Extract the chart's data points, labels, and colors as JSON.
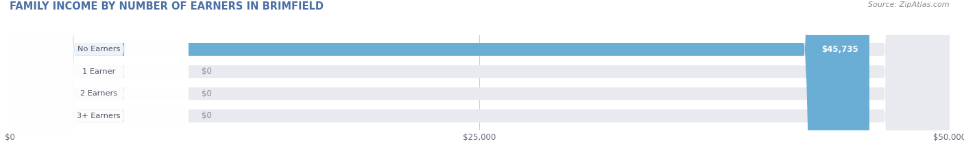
{
  "title": "FAMILY INCOME BY NUMBER OF EARNERS IN BRIMFIELD",
  "source": "Source: ZipAtlas.com",
  "categories": [
    "No Earners",
    "1 Earner",
    "2 Earners",
    "3+ Earners"
  ],
  "values": [
    45735,
    0,
    0,
    0
  ],
  "bar_colors": [
    "#6aaed6",
    "#c9a0c8",
    "#5ec8c0",
    "#b0b8e0"
  ],
  "bar_bg_color": "#e8eaf0",
  "value_labels": [
    "$45,735",
    "$0",
    "$0",
    "$0"
  ],
  "xlim": [
    0,
    50000
  ],
  "xticks": [
    0,
    25000,
    50000
  ],
  "xtick_labels": [
    "$0",
    "$25,000",
    "$50,000"
  ],
  "background_color": "#ffffff",
  "title_color": "#4a6fa5",
  "title_fontsize": 10.5,
  "source_fontsize": 8,
  "bar_height": 0.58,
  "bar_label_fontsize": 8.5
}
